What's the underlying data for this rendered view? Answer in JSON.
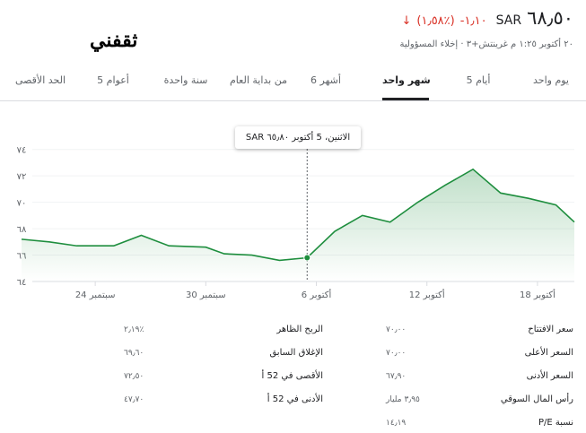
{
  "logo": {
    "text": "ثقفني"
  },
  "quote": {
    "price": "٦٨٫٥٠",
    "currency": "SAR",
    "change": "١٫١٠-",
    "change_pct": "(٪١٫٥٨)",
    "arrow_icon": "arrow-down-icon",
    "timestamp": "٢٠ أكتوبر ١:٢٥ م غرينتش+٣ · إخلاء المسؤولية"
  },
  "tabs": [
    {
      "label": "يوم واحد",
      "active": false
    },
    {
      "label": "5 أيام",
      "active": false
    },
    {
      "label": "شهر واحد",
      "active": true
    },
    {
      "label": "6 أشهر",
      "active": false
    },
    {
      "label": "من بداية العام",
      "active": false
    },
    {
      "label": "سنة واحدة",
      "active": false
    },
    {
      "label": "5 أعوام",
      "active": false
    },
    {
      "label": "الحد الأقصى",
      "active": false
    }
  ],
  "tooltip": {
    "text": "الاثنين، 5 أكتوبر ٦٥٫٨٠ SAR"
  },
  "chart_data": {
    "type": "line",
    "title": "",
    "xlabel": "",
    "ylabel": "",
    "ylim": [
      64,
      75
    ],
    "y_ticks": [
      74,
      72,
      70,
      68,
      66,
      64
    ],
    "y_tick_labels": [
      "٧٤",
      "٧٢",
      "٧٠",
      "٦٨",
      "٦٦",
      "٦٤"
    ],
    "x_ticks": [
      {
        "label": "24 سبتمبر",
        "day": 4
      },
      {
        "label": "30 سبتمبر",
        "day": 10
      },
      {
        "label": "6 أكتوبر",
        "day": 16
      },
      {
        "label": "12 أكتوبر",
        "day": 22
      },
      {
        "label": "18 أكتوبر",
        "day": 28
      }
    ],
    "x_range": [
      0,
      30
    ],
    "series": [
      {
        "points": [
          {
            "day": 0,
            "close": 67.2
          },
          {
            "day": 1.5,
            "close": 67.0
          },
          {
            "day": 3,
            "close": 66.7
          },
          {
            "day": 5,
            "close": 66.7
          },
          {
            "day": 6.5,
            "close": 67.5
          },
          {
            "day": 8,
            "close": 66.7
          },
          {
            "day": 10,
            "close": 66.6
          },
          {
            "day": 11,
            "close": 66.1
          },
          {
            "day": 12.5,
            "close": 66.0
          },
          {
            "day": 14,
            "close": 65.6
          },
          {
            "day": 15.5,
            "close": 65.8
          },
          {
            "day": 17,
            "close": 67.8
          },
          {
            "day": 18.5,
            "close": 69.0
          },
          {
            "day": 20,
            "close": 68.5
          },
          {
            "day": 21.5,
            "close": 70.0
          },
          {
            "day": 23,
            "close": 71.3
          },
          {
            "day": 24.5,
            "close": 72.5
          },
          {
            "day": 26,
            "close": 70.7
          },
          {
            "day": 27.5,
            "close": 70.3
          },
          {
            "day": 29,
            "close": 69.8
          },
          {
            "day": 30,
            "close": 68.5
          }
        ]
      }
    ],
    "highlight_index": 10,
    "line_color": "#1e8e3e"
  },
  "stats": {
    "right": [
      {
        "label": "سعر الافتتاح",
        "value": "٧٠٫٠٠"
      },
      {
        "label": "السعر الأعلى",
        "value": "٧٠٫٠٠"
      },
      {
        "label": "السعر الأدنى",
        "value": "٦٧٫٩٠"
      },
      {
        "label": "رأس المال السوقي",
        "value": "٣٫٩٥ مليار"
      },
      {
        "label": "نسبة P/E",
        "value": "١٤٫١٩"
      }
    ],
    "left": [
      {
        "label": "الربح الظاهر",
        "value": "٪٢٫١٩"
      },
      {
        "label": "الإغلاق السابق",
        "value": "٦٩٫٦٠"
      },
      {
        "label": "الأقصى في 52 أ",
        "value": "٧٢٫٥٠"
      },
      {
        "label": "الأدنى في 52 أ",
        "value": "٤٧٫٧٠"
      }
    ]
  }
}
